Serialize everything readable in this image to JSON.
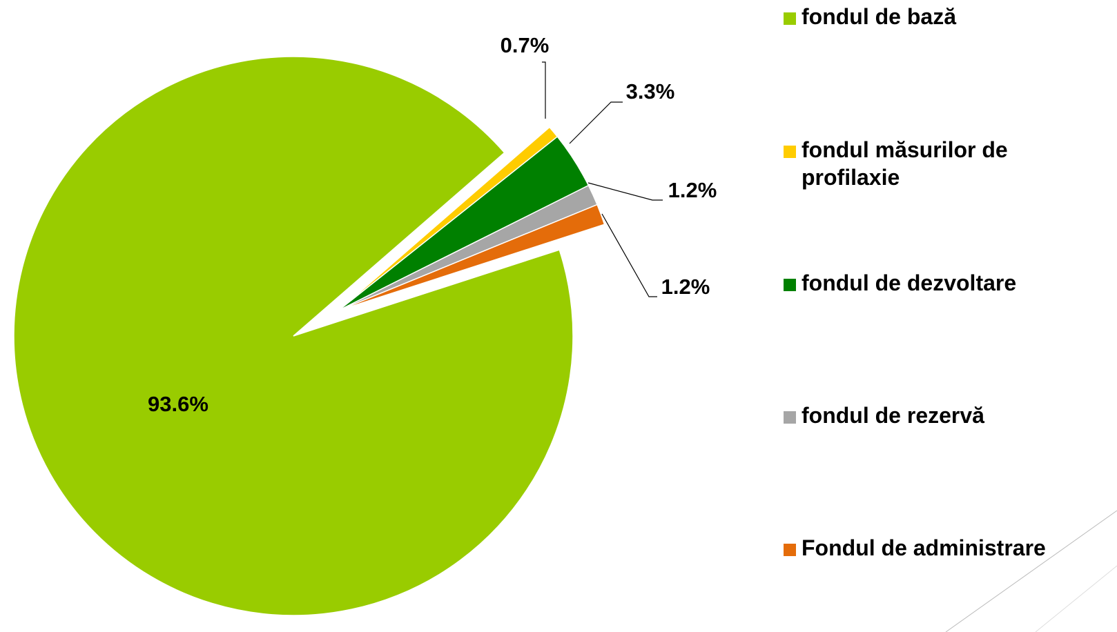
{
  "chart_data": {
    "type": "pie",
    "categories": [
      "fondul de bază",
      "fondul măsurilor de profilaxie",
      "fondul de dezvoltare",
      "fondul de rezervă",
      "Fondul de administrare"
    ],
    "values": [
      93.6,
      0.7,
      3.3,
      1.2,
      1.2
    ],
    "value_labels": [
      "93.6%",
      "0.7%",
      "3.3%",
      "1.2%",
      "1.2%"
    ],
    "colors": [
      "#99cc00",
      "#ffcc00",
      "#008000",
      "#a6a6a6",
      "#e46c0a"
    ],
    "legend": "right"
  }
}
